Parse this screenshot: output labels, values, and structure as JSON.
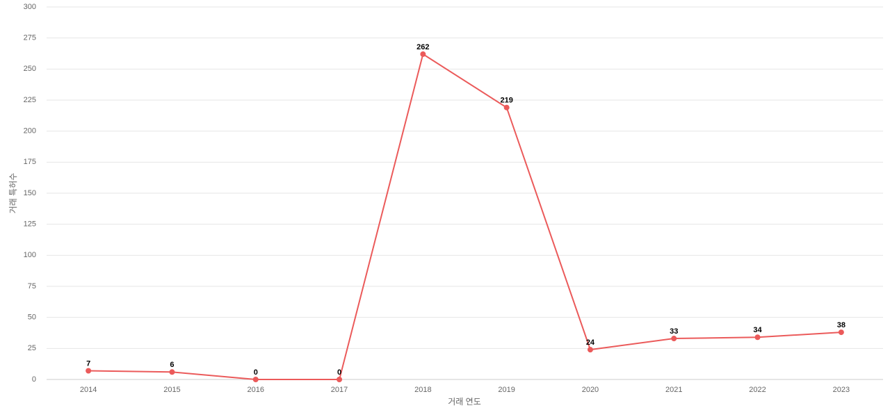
{
  "chart_data": {
    "type": "line",
    "x_label": "거래 연도",
    "y_label": "거래 특허수",
    "categories": [
      "2014",
      "2015",
      "2016",
      "2017",
      "2018",
      "2019",
      "2020",
      "2021",
      "2022",
      "2023"
    ],
    "series": [
      {
        "name": "거래 특허수",
        "color": "#eb5a5a",
        "values": [
          7,
          6,
          0,
          0,
          262,
          219,
          24,
          33,
          34,
          38
        ]
      }
    ],
    "ylim": [
      0,
      300
    ],
    "yticks": [
      0,
      25,
      50,
      75,
      100,
      125,
      150,
      175,
      200,
      225,
      250,
      275,
      300
    ],
    "grid": true
  }
}
